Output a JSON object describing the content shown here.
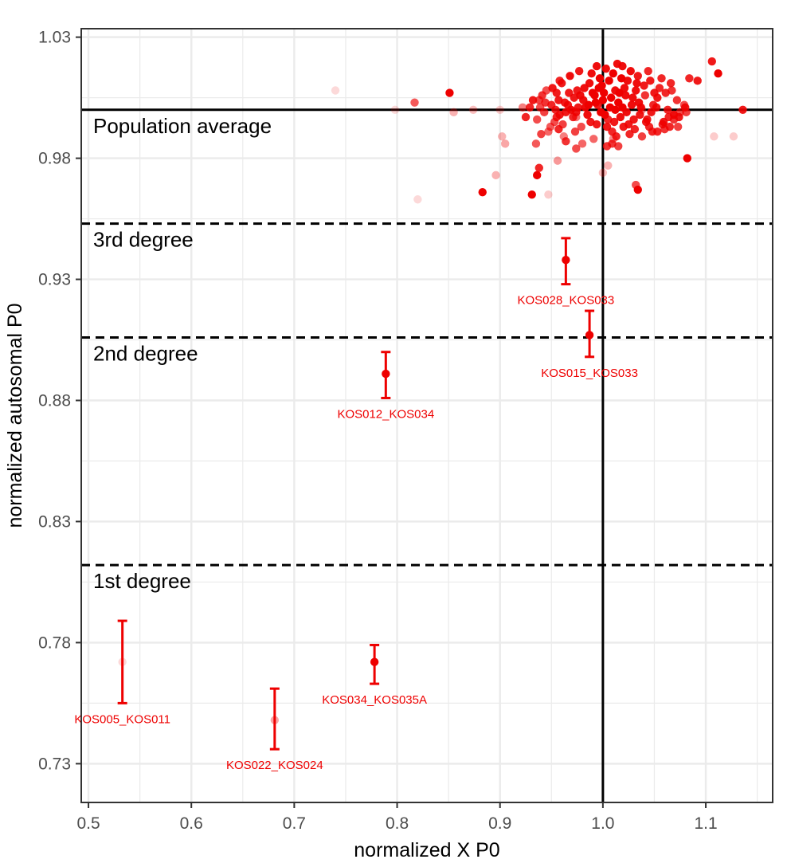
{
  "chart_data": {
    "type": "scatter",
    "xlabel": "normalized X P0",
    "ylabel": "normalized autosomal P0",
    "xlim": [
      0.493,
      1.165
    ],
    "ylim": [
      0.714,
      1.0335
    ],
    "xticks": [
      0.5,
      0.6,
      0.7,
      0.8,
      0.9,
      1.0,
      1.1
    ],
    "xtick_labels": [
      "0.5",
      "0.6",
      "0.7",
      "0.8",
      "0.9",
      "1.0",
      "1.1"
    ],
    "yticks": [
      0.73,
      0.78,
      0.83,
      0.88,
      0.93,
      0.98,
      1.03
    ],
    "ytick_labels": [
      "0.73",
      "0.78",
      "0.83",
      "0.88",
      "0.93",
      "0.98",
      "1.03"
    ],
    "grid": true,
    "colors": {
      "points": "#ee0000",
      "lines": "#000000",
      "grid": "#ebebeb"
    },
    "reference_lines": [
      {
        "orientation": "horizontal",
        "value": 1.0,
        "style": "solid",
        "label": "Population average"
      },
      {
        "orientation": "vertical",
        "value": 1.0,
        "style": "solid",
        "label": ""
      },
      {
        "orientation": "horizontal",
        "value": 0.953,
        "style": "dashed",
        "label": "3rd degree"
      },
      {
        "orientation": "horizontal",
        "value": 0.906,
        "style": "dashed",
        "label": "2nd degree"
      },
      {
        "orientation": "horizontal",
        "value": 0.812,
        "style": "dashed",
        "label": "1st degree"
      }
    ],
    "related_pairs": [
      {
        "label": "KOS028_KOS033",
        "x": 0.964,
        "y": 0.938,
        "ylow": 0.928,
        "yhigh": 0.947,
        "opacity": 1.0
      },
      {
        "label": "KOS015_KOS033",
        "x": 0.987,
        "y": 0.907,
        "ylow": 0.898,
        "yhigh": 0.917,
        "opacity": 1.0
      },
      {
        "label": "KOS012_KOS034",
        "x": 0.789,
        "y": 0.891,
        "ylow": 0.881,
        "yhigh": 0.9,
        "opacity": 1.0
      },
      {
        "label": "KOS034_KOS035A",
        "x": 0.778,
        "y": 0.772,
        "ylow": 0.763,
        "yhigh": 0.779,
        "opacity": 1.0
      },
      {
        "label": "KOS005_KOS011",
        "x": 0.533,
        "y": 0.772,
        "ylow": 0.755,
        "yhigh": 0.789,
        "opacity": 0.15
      },
      {
        "label": "KOS022_KOS024",
        "x": 0.681,
        "y": 0.748,
        "ylow": 0.736,
        "yhigh": 0.761,
        "opacity": 0.35
      }
    ],
    "background_points": [
      [
        1.012,
        1.008,
        0.95
      ],
      [
        0.995,
        1.002,
        0.9
      ],
      [
        1.005,
        0.996,
        0.85
      ],
      [
        0.972,
        1.005,
        0.9
      ],
      [
        1.023,
        0.999,
        0.95
      ],
      [
        1.041,
        1.006,
        0.8
      ],
      [
        0.958,
        0.998,
        0.9
      ],
      [
        1.018,
        1.013,
        1.0
      ],
      [
        0.987,
        1.011,
        0.95
      ],
      [
        1.031,
        0.992,
        0.85
      ],
      [
        0.944,
        1.003,
        0.8
      ],
      [
        1.052,
        1.001,
        0.9
      ],
      [
        1.003,
        1.017,
        0.95
      ],
      [
        0.979,
        0.993,
        0.7
      ],
      [
        1.064,
        0.997,
        0.85
      ],
      [
        0.951,
        1.009,
        0.9
      ],
      [
        1.027,
        1.016,
        0.95
      ],
      [
        0.991,
        0.988,
        0.6
      ],
      [
        1.046,
        1.012,
        0.9
      ],
      [
        1.009,
        0.991,
        0.85
      ],
      [
        0.936,
        0.996,
        0.7
      ],
      [
        1.072,
        1.004,
        0.8
      ],
      [
        0.968,
        1.014,
        0.95
      ],
      [
        1.036,
        0.998,
        0.9
      ],
      [
        1.015,
        1.003,
        1.0
      ],
      [
        0.983,
        1.001,
        0.95
      ],
      [
        1.058,
        0.994,
        0.85
      ],
      [
        0.962,
        0.989,
        0.5
      ],
      [
        1.021,
        1.009,
        0.95
      ],
      [
        1.001,
        1.007,
        1.0
      ],
      [
        0.947,
        0.991,
        0.6
      ],
      [
        1.043,
        0.996,
        0.9
      ],
      [
        0.975,
        1.008,
        0.9
      ],
      [
        1.066,
        1.011,
        0.85
      ],
      [
        0.998,
        0.999,
        1.0
      ],
      [
        1.029,
        1.005,
        0.95
      ],
      [
        0.957,
        1.004,
        0.9
      ],
      [
        1.011,
        0.995,
        0.9
      ],
      [
        1.049,
        1.002,
        0.85
      ],
      [
        0.989,
        1.015,
        0.95
      ],
      [
        0.941,
        1.006,
        0.8
      ],
      [
        1.075,
        0.999,
        0.7
      ],
      [
        1.006,
        1.012,
        1.0
      ],
      [
        0.971,
        0.997,
        0.85
      ],
      [
        1.034,
        1.014,
        0.9
      ],
      [
        0.994,
        0.994,
        0.9
      ],
      [
        1.061,
        1.007,
        0.85
      ],
      [
        0.953,
        0.995,
        0.7
      ],
      [
        1.019,
        1.001,
        1.0
      ],
      [
        0.981,
        1.004,
        0.95
      ],
      [
        1.038,
        0.989,
        0.75
      ],
      [
        0.966,
        1.002,
        0.9
      ],
      [
        1.025,
        0.994,
        0.9
      ],
      [
        1.008,
        1.005,
        1.0
      ],
      [
        0.939,
        1.001,
        0.7
      ],
      [
        1.055,
        1.009,
        0.85
      ],
      [
        0.985,
        0.998,
        0.95
      ],
      [
        1.014,
        1.019,
        0.95
      ],
      [
        0.96,
        1.011,
        0.9
      ],
      [
        1.045,
        0.993,
        0.85
      ],
      [
        0.999,
        1.01,
        1.0
      ],
      [
        1.069,
        0.996,
        0.8
      ],
      [
        0.976,
        1.001,
        0.9
      ],
      [
        1.032,
        1.008,
        0.95
      ],
      [
        0.949,
        0.993,
        0.65
      ],
      [
        1.017,
        0.997,
        0.95
      ],
      [
        0.992,
        1.006,
        1.0
      ],
      [
        1.053,
        1.005,
        0.9
      ],
      [
        0.964,
        0.999,
        0.9
      ],
      [
        1.004,
        0.993,
        0.9
      ],
      [
        1.028,
        1.002,
        0.95
      ],
      [
        0.977,
        1.016,
        0.9
      ],
      [
        1.04,
        1.01,
        0.9
      ],
      [
        0.943,
        0.999,
        0.75
      ],
      [
        1.01,
        1.015,
        1.0
      ],
      [
        0.988,
        0.995,
        0.9
      ],
      [
        1.063,
        1.0,
        0.85
      ],
      [
        0.955,
        1.007,
        0.9
      ],
      [
        1.022,
        1.006,
        0.95
      ],
      [
        0.997,
        1.013,
        1.0
      ],
      [
        1.047,
        0.999,
        0.9
      ],
      [
        0.973,
        0.991,
        0.75
      ],
      [
        1.035,
        1.003,
        0.95
      ],
      [
        1.002,
        0.998,
        1.0
      ],
      [
        0.958,
        1.012,
        0.85
      ],
      [
        1.079,
        1.002,
        0.7
      ],
      [
        1.013,
        0.989,
        0.85
      ],
      [
        0.982,
        1.009,
        0.95
      ],
      [
        1.057,
        1.013,
        0.85
      ],
      [
        0.969,
        1.0,
        0.95
      ],
      [
        1.024,
        1.012,
        0.95
      ],
      [
        0.993,
        1.003,
        1.0
      ],
      [
        1.042,
        0.995,
        0.9
      ],
      [
        0.95,
        1.002,
        0.85
      ],
      [
        1.007,
        1.001,
        1.0
      ],
      [
        1.067,
        1.008,
        0.8
      ],
      [
        0.978,
        1.006,
        0.95
      ],
      [
        1.03,
        0.996,
        0.9
      ],
      [
        0.961,
        0.994,
        0.75
      ],
      [
        1.016,
        1.007,
        1.0
      ],
      [
        0.986,
        1.002,
        1.0
      ],
      [
        1.05,
        1.007,
        0.9
      ],
      [
        0.945,
        1.008,
        0.7
      ],
      [
        1.02,
        0.993,
        0.9
      ],
      [
        0.996,
        1.009,
        1.0
      ],
      [
        1.073,
        0.993,
        0.75
      ],
      [
        0.967,
        1.007,
        0.9
      ],
      [
        1.037,
        1.001,
        0.95
      ],
      [
        1.0,
        1.004,
        1.0
      ],
      [
        0.974,
        0.999,
        0.9
      ],
      [
        1.026,
        0.99,
        0.85
      ],
      [
        0.954,
        1.0,
        0.85
      ],
      [
        1.044,
        1.016,
        0.85
      ],
      [
        0.99,
        1.007,
        1.0
      ],
      [
        1.06,
        0.992,
        0.8
      ],
      [
        1.012,
        1.0,
        1.0
      ],
      [
        0.98,
        0.986,
        0.6
      ],
      [
        1.033,
        1.011,
        0.95
      ],
      [
        0.963,
        1.003,
        0.9
      ],
      [
        1.019,
        1.018,
        0.95
      ],
      [
        1.084,
        1.013,
        0.85
      ],
      [
        1.009,
        0.986,
        0.8
      ],
      [
        1.048,
        0.991,
        0.85
      ],
      [
        0.938,
        1.004,
        0.75
      ],
      [
        0.994,
        1.018,
        0.95
      ],
      [
        1.106,
        1.02,
        0.9
      ],
      [
        1.112,
        1.015,
        1.0
      ],
      [
        1.092,
        1.012,
        0.9
      ],
      [
        1.081,
        0.999,
        0.75
      ],
      [
        1.08,
        1.001,
        0.9
      ],
      [
        0.932,
        1.004,
        0.9
      ],
      [
        0.929,
        1.001,
        0.85
      ],
      [
        0.925,
        0.997,
        0.85
      ],
      [
        0.955,
        0.997,
        0.85
      ],
      [
        0.957,
        0.992,
        0.85
      ],
      [
        0.974,
        0.984,
        0.7
      ],
      [
        0.964,
        0.987,
        0.8
      ],
      [
        0.94,
        0.99,
        0.75
      ],
      [
        0.935,
        0.986,
        0.65
      ],
      [
        1.004,
        0.985,
        0.8
      ],
      [
        1.015,
        0.985,
        0.75
      ],
      [
        1.053,
        0.991,
        0.85
      ],
      [
        1.059,
        0.995,
        0.9
      ],
      [
        1.065,
        0.993,
        0.85
      ],
      [
        1.069,
        0.998,
        0.95
      ],
      [
        1.074,
        0.997,
        0.9
      ],
      [
        0.851,
        1.007,
        1.0
      ],
      [
        0.936,
        0.973,
        1.0
      ],
      [
        0.938,
        0.976,
        0.85
      ],
      [
        0.883,
        0.966,
        1.0
      ],
      [
        0.931,
        0.965,
        1.0
      ],
      [
        1.034,
        0.967,
        1.0
      ],
      [
        1.032,
        0.969,
        0.7
      ],
      [
        1.082,
        0.98,
        1.0
      ],
      [
        0.817,
        1.003,
        0.65
      ],
      [
        0.855,
        0.999,
        0.3
      ],
      [
        0.874,
        1.0,
        0.25
      ],
      [
        0.9,
        1.0,
        0.2
      ],
      [
        0.896,
        0.973,
        0.3
      ],
      [
        0.82,
        0.963,
        0.15
      ],
      [
        0.74,
        1.008,
        0.15
      ],
      [
        0.798,
        1.0,
        0.15
      ],
      [
        1.136,
        1.0,
        0.9
      ],
      [
        1.127,
        0.989,
        0.2
      ],
      [
        1.108,
        0.989,
        0.2
      ],
      [
        1.005,
        0.977,
        0.3
      ],
      [
        0.947,
        0.965,
        0.2
      ],
      [
        0.956,
        0.979,
        0.4
      ],
      [
        1.0,
        0.974,
        0.25
      ],
      [
        1.01,
        0.988,
        0.45
      ],
      [
        1.038,
        1.0,
        0.45
      ],
      [
        0.974,
        0.997,
        0.55
      ],
      [
        0.905,
        0.986,
        0.35
      ],
      [
        0.902,
        0.989,
        0.3
      ],
      [
        0.922,
        1.001,
        0.5
      ]
    ]
  }
}
